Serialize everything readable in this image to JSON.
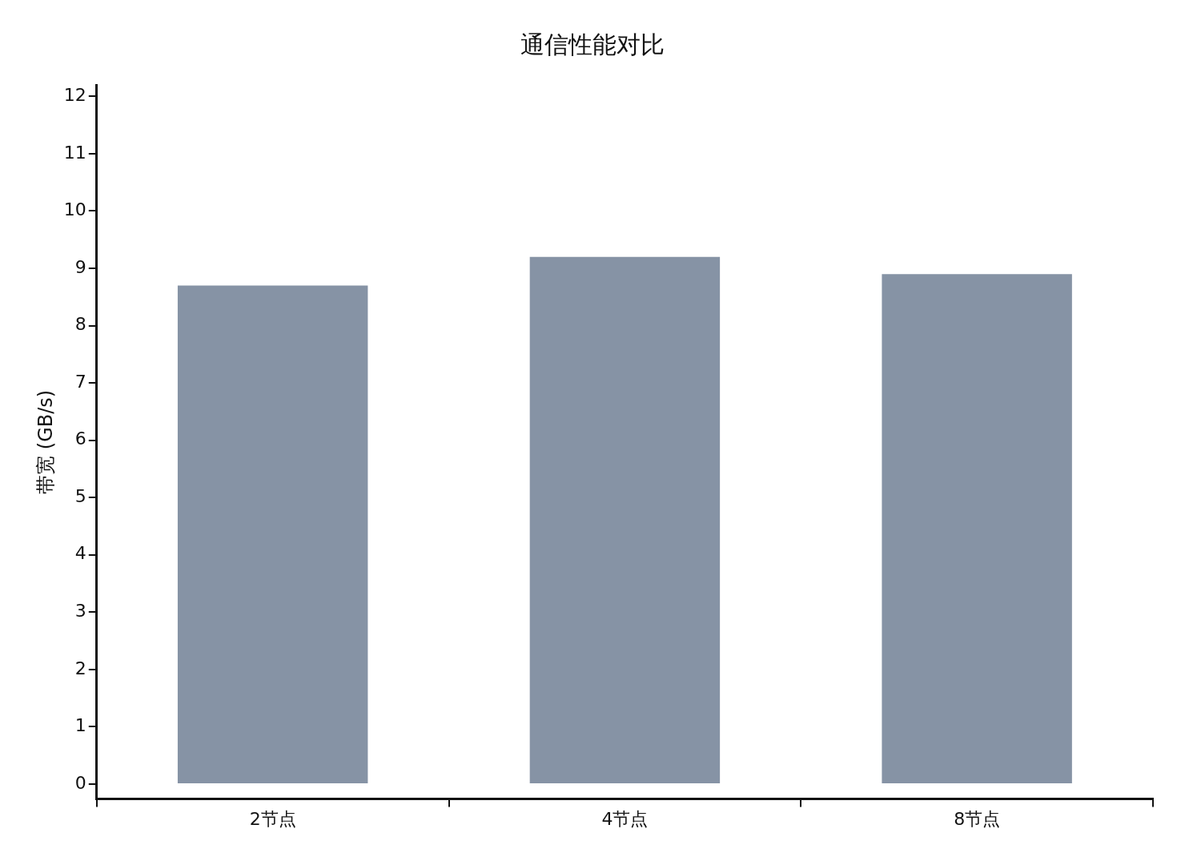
{
  "chart_data": {
    "type": "bar",
    "title": "通信性能对比",
    "ylabel": "带宽 (GB/s)",
    "categories": [
      "2节点",
      "4节点",
      "8节点"
    ],
    "values": [
      8.7,
      9.2,
      8.9
    ],
    "color": "#8693a5",
    "ylim": [
      -0.26,
      12.2
    ],
    "yticks": [
      0,
      1,
      2,
      3,
      4,
      5,
      6,
      7,
      8,
      9,
      10,
      11,
      12
    ],
    "grid": false,
    "legend": false
  }
}
